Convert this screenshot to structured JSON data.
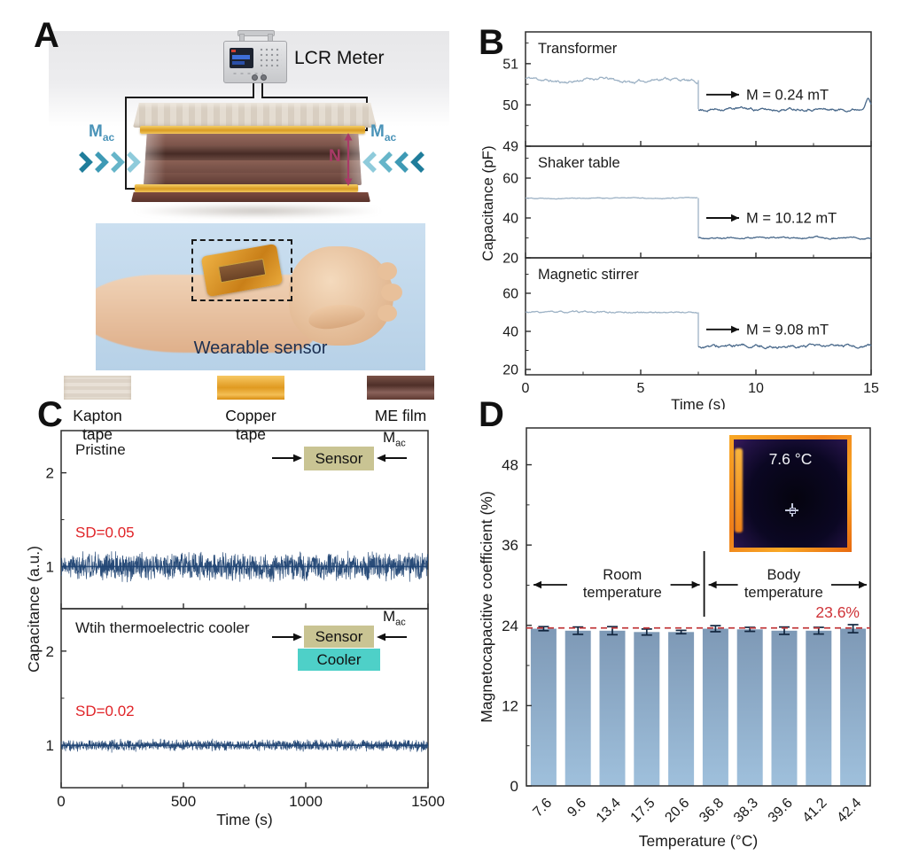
{
  "panels": {
    "a": {
      "label": "A",
      "lcr_label": "LCR Meter",
      "mac": "M",
      "mac_sub": "ac",
      "n_label": "N",
      "wearable_label": "Wearable sensor",
      "legend": [
        {
          "name": "Kapton tape"
        },
        {
          "name": "Copper tape"
        },
        {
          "name": "ME film"
        }
      ]
    },
    "b": {
      "label": "B"
    },
    "c": {
      "label": "C",
      "insets": {
        "sensor": "Sensor",
        "cooler": "Cooler",
        "mac": "M",
        "mac_sub": "ac"
      }
    },
    "d": {
      "label": "D"
    }
  },
  "colors": {
    "axis": "#2e2e2e",
    "line_pre": "#9db2c5",
    "line_post": "#48688a",
    "noise": "#1d4272",
    "bar_top": "#7e99b6",
    "bar_bottom": "#9fc0dc",
    "error": "#12263f",
    "sd_red": "#e02428",
    "ref_red": "#c23a3c",
    "ref_label_red": "#cf3338",
    "teal": "#4a93b8",
    "n_color": "#a93a67",
    "text": "#1a1a1a"
  },
  "chart_data": [
    {
      "id": "B",
      "type": "line",
      "xlabel": "Time (s)",
      "ylabel": "Capacitance (pF)",
      "x_range": [
        0,
        15
      ],
      "x_ticks": [
        0,
        5,
        10,
        15
      ],
      "x_minor_step": 2.5,
      "step_time": 7.5,
      "subplots": [
        {
          "label": "Transformer",
          "annotation": "M = 0.24 mT",
          "baseline": 50.6,
          "after": 49.9,
          "ylim": [
            49,
            51.77
          ],
          "yticks": [
            49,
            50,
            51
          ],
          "y_minor_step": 0.5,
          "noise": [
            0.05,
            0.045
          ],
          "wave": [
            0.045,
            2.1
          ],
          "end_spike": 0.27
        },
        {
          "label": "Shaker table",
          "annotation": "M = 10.12 mT",
          "baseline": 50,
          "after": 30,
          "ylim": [
            20,
            76
          ],
          "yticks": [
            20,
            40,
            60
          ],
          "y_minor_step": 10,
          "noise": [
            0.3,
            0.55
          ]
        },
        {
          "label": "Magnetic stirrer",
          "annotation": "M = 9.08 mT",
          "baseline": 50,
          "after": 32,
          "ylim": [
            17.2,
            78.6
          ],
          "yticks": [
            20,
            40,
            60
          ],
          "y_minor_step": 10,
          "noise": [
            0.6,
            1.1
          ]
        }
      ]
    },
    {
      "id": "C",
      "type": "line",
      "xlabel": "Time (s)",
      "ylabel": "Capacitance (a.u.)",
      "x_range": [
        0,
        1500
      ],
      "x_ticks": [
        0,
        500,
        1000,
        1500
      ],
      "x_minor_step": 250,
      "subplots": [
        {
          "label": "Pristine",
          "sd": "SD=0.05",
          "baseline": 1,
          "noise": 0.085,
          "ylim": [
            0.55,
            2.45
          ],
          "yticks": [
            1,
            2
          ],
          "y_minor_step": 0.5
        },
        {
          "label": "Wtih thermoelectric cooler",
          "sd": "SD=0.02",
          "baseline": 1,
          "noise": 0.035,
          "ylim": [
            0.55,
            2.45
          ],
          "yticks": [
            1,
            2
          ],
          "y_minor_step": 0.5
        }
      ]
    },
    {
      "id": "D",
      "type": "bar",
      "xlabel": "Temperature (°C)",
      "ylabel": "Magnetocapacitive coefficient (%)",
      "categories": [
        "7.6",
        "9.6",
        "13.4",
        "17.5",
        "20.6",
        "36.8",
        "38.3",
        "39.6",
        "41.2",
        "42.4"
      ],
      "values": [
        23.5,
        23.2,
        23.2,
        23.0,
        23.0,
        23.5,
        23.4,
        23.2,
        23.2,
        23.5
      ],
      "errors": [
        0.3,
        0.55,
        0.6,
        0.45,
        0.25,
        0.45,
        0.3,
        0.55,
        0.5,
        0.6
      ],
      "ylim": [
        0,
        53.5
      ],
      "yticks": [
        0,
        12,
        24,
        36,
        48
      ],
      "y_minor_step": 6,
      "ref_line": {
        "value": 23.6,
        "label": "23.6%"
      },
      "regions": [
        {
          "lines": [
            "Room",
            "temperature"
          ]
        },
        {
          "lines": [
            "Body",
            "temperature"
          ]
        }
      ],
      "divider_x_frac": 0.517,
      "inset_label": "7.6 °C"
    }
  ]
}
